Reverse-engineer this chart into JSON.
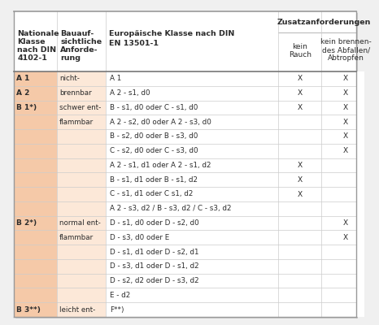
{
  "rows": [
    {
      "col0": "A 1",
      "col1": "nicht-",
      "col2": "A 1",
      "x1": true,
      "x2": true
    },
    {
      "col0": "A 2",
      "col1": "brennbar",
      "col2": "A 2 - s1, d0",
      "x1": true,
      "x2": true
    },
    {
      "col0": "B 1*)",
      "col1": "schwer ent-",
      "col2": "B - s1, d0 oder C - s1, d0",
      "x1": true,
      "x2": true
    },
    {
      "col0": "",
      "col1": "flammbar",
      "col2": "A 2 - s2, d0 oder A 2 - s3, d0",
      "x1": false,
      "x2": true
    },
    {
      "col0": "",
      "col1": "",
      "col2": "B - s2, d0 oder B - s3, d0",
      "x1": false,
      "x2": true
    },
    {
      "col0": "",
      "col1": "",
      "col2": "C - s2, d0 oder C - s3, d0",
      "x1": false,
      "x2": true
    },
    {
      "col0": "",
      "col1": "",
      "col2": "A 2 - s1, d1 oder A 2 - s1, d2",
      "x1": true,
      "x2": false
    },
    {
      "col0": "",
      "col1": "",
      "col2": "B - s1, d1 oder B - s1, d2",
      "x1": true,
      "x2": false
    },
    {
      "col0": "",
      "col1": "",
      "col2": "C - s1, d1 oder C s1, d2",
      "x1": true,
      "x2": false
    },
    {
      "col0": "",
      "col1": "",
      "col2": "A 2 - s3, d2 / B - s3, d2 / C - s3, d2",
      "x1": false,
      "x2": false
    },
    {
      "col0": "B 2*)",
      "col1": "normal ent-",
      "col2": "D - s1, d0 oder D - s2, d0",
      "x1": false,
      "x2": true
    },
    {
      "col0": "",
      "col1": "flammbar",
      "col2": "D - s3, d0 oder E",
      "x1": false,
      "x2": true
    },
    {
      "col0": "",
      "col1": "",
      "col2": "D - s1, d1 oder D - s2, d1",
      "x1": false,
      "x2": false
    },
    {
      "col0": "",
      "col1": "",
      "col2": "D - s3, d1 oder D - s1, d2",
      "x1": false,
      "x2": false
    },
    {
      "col0": "",
      "col1": "",
      "col2": "D - s2, d2 oder D - s3, d2",
      "x1": false,
      "x2": false
    },
    {
      "col0": "",
      "col1": "",
      "col2": "E - d2",
      "x1": false,
      "x2": false
    },
    {
      "col0": "B 3**)",
      "col1": "leicht ent-",
      "col2": "F**)",
      "x1": false,
      "x2": false
    }
  ],
  "col0_bold_rows": [
    0,
    1,
    2,
    10,
    16
  ],
  "bg_left": "#f5c9a8",
  "bg_mid": "#fce8d8",
  "bg_white": "#ffffff",
  "line_dark": "#999999",
  "line_light": "#cccccc",
  "text_color": "#2c2c2c",
  "figure_bg": "#f0f0f0",
  "outer_border": "#aaaaaa",
  "header_line_color": "#888888"
}
